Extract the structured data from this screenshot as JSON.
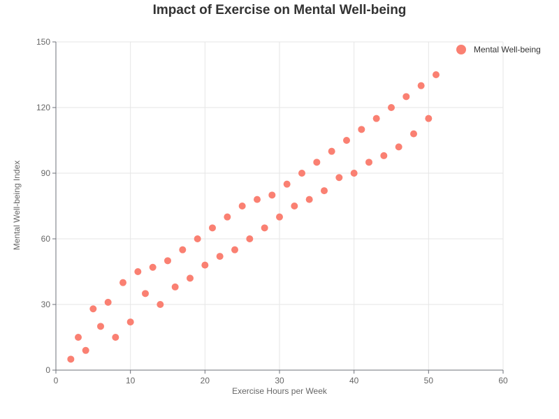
{
  "chart_data": {
    "type": "scatter",
    "title": "Impact of Exercise on Mental Well-being",
    "xlabel": "Exercise Hours per Week",
    "ylabel": "Mental Well-being Index",
    "xlim": [
      0,
      60
    ],
    "ylim": [
      0,
      150
    ],
    "x_ticks": [
      0,
      10,
      20,
      30,
      40,
      50,
      60
    ],
    "y_ticks": [
      0,
      30,
      60,
      90,
      120,
      150
    ],
    "grid": true,
    "legend_position": "top-right",
    "series": [
      {
        "name": "Mental Well-being",
        "color": "#fa8072",
        "points": [
          [
            2,
            5
          ],
          [
            3,
            15
          ],
          [
            4,
            9
          ],
          [
            5,
            28
          ],
          [
            6,
            20
          ],
          [
            7,
            31
          ],
          [
            8,
            15
          ],
          [
            9,
            40
          ],
          [
            10,
            22
          ],
          [
            11,
            45
          ],
          [
            12,
            35
          ],
          [
            13,
            47
          ],
          [
            14,
            30
          ],
          [
            15,
            50
          ],
          [
            16,
            38
          ],
          [
            17,
            55
          ],
          [
            18,
            42
          ],
          [
            19,
            60
          ],
          [
            20,
            48
          ],
          [
            21,
            65
          ],
          [
            22,
            52
          ],
          [
            23,
            70
          ],
          [
            24,
            55
          ],
          [
            25,
            75
          ],
          [
            26,
            60
          ],
          [
            27,
            78
          ],
          [
            28,
            65
          ],
          [
            29,
            80
          ],
          [
            30,
            70
          ],
          [
            31,
            85
          ],
          [
            32,
            75
          ],
          [
            33,
            90
          ],
          [
            34,
            78
          ],
          [
            35,
            95
          ],
          [
            36,
            82
          ],
          [
            37,
            100
          ],
          [
            38,
            88
          ],
          [
            39,
            105
          ],
          [
            40,
            90
          ],
          [
            41,
            110
          ],
          [
            42,
            95
          ],
          [
            43,
            115
          ],
          [
            44,
            98
          ],
          [
            45,
            120
          ],
          [
            46,
            102
          ],
          [
            47,
            125
          ],
          [
            48,
            108
          ],
          [
            49,
            130
          ],
          [
            50,
            115
          ],
          [
            51,
            135
          ]
        ]
      }
    ]
  }
}
